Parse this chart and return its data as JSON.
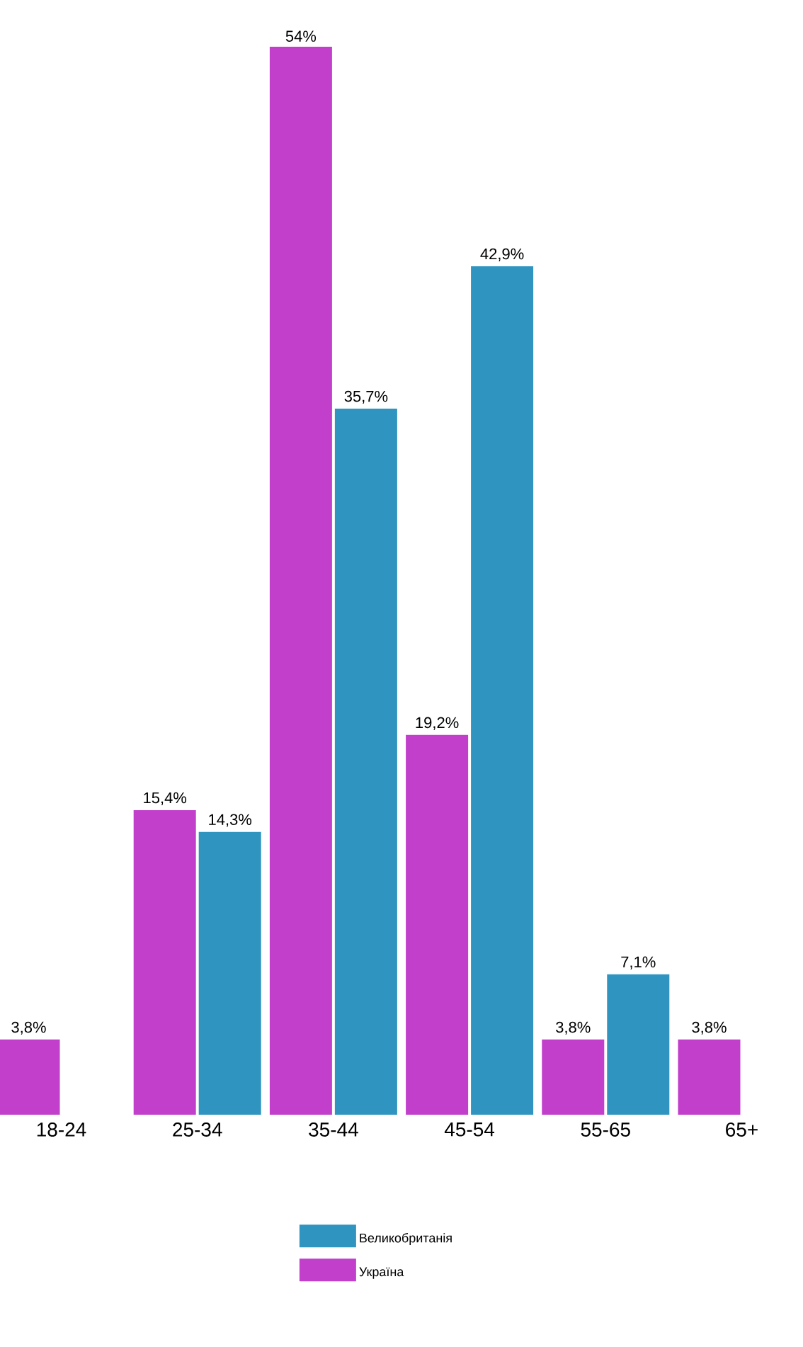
{
  "chart_data": {
    "type": "bar",
    "categories": [
      "18-24",
      "25-34",
      "35-44",
      "45-54",
      "55-65",
      "65+"
    ],
    "series": [
      {
        "name": "Україна",
        "color": "#c23fcc",
        "values": [
          3.8,
          15.4,
          54,
          19.2,
          3.8,
          3.8
        ],
        "value_labels": [
          "3,8%",
          "15,4%",
          "54%",
          "19,2%",
          "3,8%",
          "3,8%"
        ]
      },
      {
        "name": "Великобританія",
        "color": "#2f94bf",
        "values": [
          null,
          14.3,
          35.7,
          42.9,
          7.1,
          null
        ],
        "value_labels": [
          null,
          "14,3%",
          "35,7%",
          "42,9%",
          "7,1%",
          null
        ]
      }
    ],
    "legend": "bottom"
  }
}
